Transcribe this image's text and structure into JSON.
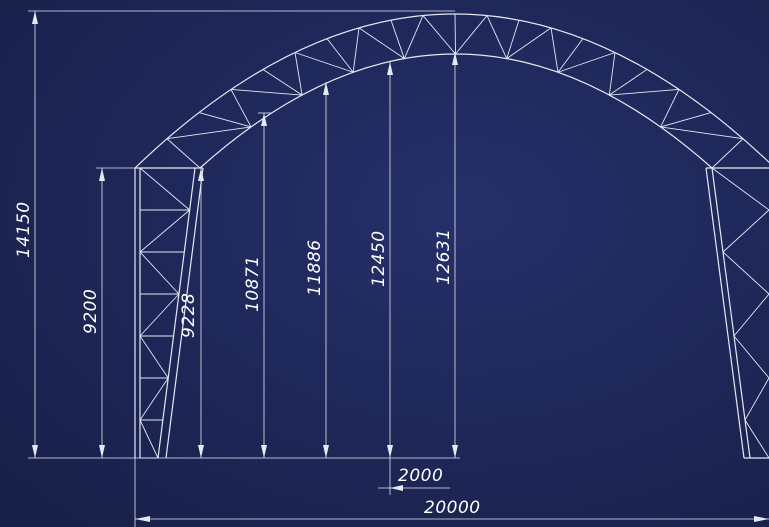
{
  "dimensions": {
    "total_height": "14150",
    "wall_height": "9200",
    "inner_wall_height": "9228",
    "height_a": "10871",
    "height_b": "11886",
    "height_c": "12450",
    "height_d": "12631",
    "module_width": "2000",
    "total_span": "20000"
  },
  "colors": {
    "background": "#1c2452",
    "line": "#e6e8f2",
    "text": "#ffffff"
  }
}
